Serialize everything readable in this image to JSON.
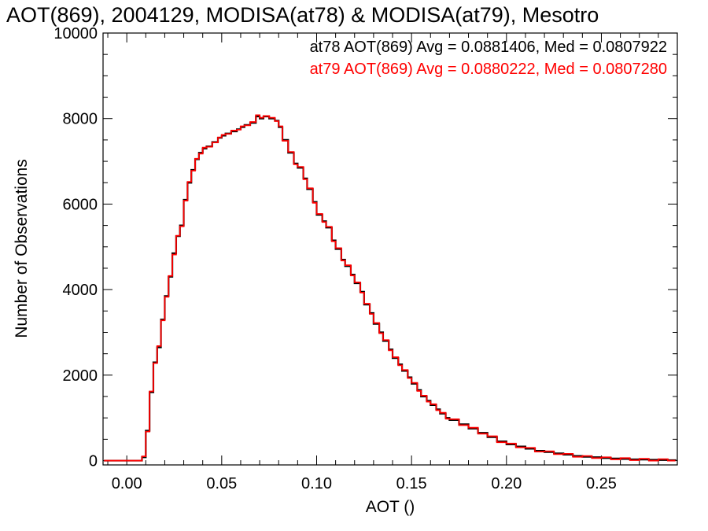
{
  "chart_data": {
    "type": "line",
    "style": "step-histogram",
    "title": "AOT(869), 2004129, MODISA(at78) & MODISA(at79), Mesotro",
    "xlabel": "AOT ()",
    "ylabel": "Number of Observations",
    "xlim": [
      -0.0125,
      0.29
    ],
    "ylim": [
      -100,
      10000
    ],
    "x_ticks": [
      0.0,
      0.05,
      0.1,
      0.15,
      0.2,
      0.25
    ],
    "x_tick_labels": [
      "0.00",
      "0.05",
      "0.10",
      "0.15",
      "0.20",
      "0.25"
    ],
    "y_ticks": [
      0,
      2000,
      4000,
      6000,
      8000,
      10000
    ],
    "y_tick_labels": [
      "0",
      "2000",
      "4000",
      "6000",
      "8000",
      "10000"
    ],
    "legend_position": "top-right",
    "annotations": [
      {
        "text": "at78 AOT(869) Avg = 0.0881406, Med = 0.0807922",
        "color": "#000000"
      },
      {
        "text": "at79 AOT(869) Avg = 0.0880222, Med = 0.0807280",
        "color": "#ff0000"
      }
    ],
    "series": [
      {
        "color": "#000000",
        "x": [
          -0.012,
          -0.005,
          0.0,
          0.004,
          0.006,
          0.008,
          0.01,
          0.012,
          0.014,
          0.016,
          0.018,
          0.02,
          0.022,
          0.024,
          0.026,
          0.028,
          0.03,
          0.032,
          0.034,
          0.036,
          0.038,
          0.04,
          0.042,
          0.045,
          0.048,
          0.05,
          0.052,
          0.055,
          0.058,
          0.06,
          0.062,
          0.065,
          0.068,
          0.07,
          0.072,
          0.075,
          0.078,
          0.08,
          0.082,
          0.085,
          0.088,
          0.09,
          0.093,
          0.095,
          0.098,
          0.1,
          0.103,
          0.105,
          0.108,
          0.11,
          0.113,
          0.115,
          0.118,
          0.12,
          0.123,
          0.125,
          0.128,
          0.13,
          0.133,
          0.135,
          0.138,
          0.14,
          0.143,
          0.145,
          0.148,
          0.15,
          0.153,
          0.155,
          0.158,
          0.16,
          0.163,
          0.165,
          0.168,
          0.17,
          0.175,
          0.18,
          0.185,
          0.19,
          0.195,
          0.2,
          0.205,
          0.21,
          0.215,
          0.22,
          0.225,
          0.23,
          0.235,
          0.24,
          0.245,
          0.25,
          0.255,
          0.26,
          0.265,
          0.27,
          0.275,
          0.28,
          0.285,
          0.289
        ],
        "y": [
          0,
          0,
          0,
          0,
          0,
          80,
          700,
          1600,
          2300,
          2650,
          3300,
          3850,
          4300,
          4850,
          5250,
          5500,
          6100,
          6500,
          6800,
          7050,
          7200,
          7300,
          7350,
          7450,
          7550,
          7600,
          7650,
          7700,
          7750,
          7800,
          7850,
          7900,
          8050,
          8000,
          8050,
          8000,
          7950,
          7800,
          7500,
          7200,
          6950,
          6850,
          6600,
          6350,
          6050,
          5750,
          5600,
          5450,
          5150,
          4950,
          4700,
          4550,
          4350,
          4150,
          3950,
          3650,
          3450,
          3200,
          3000,
          2800,
          2600,
          2400,
          2250,
          2100,
          1950,
          1800,
          1650,
          1500,
          1400,
          1300,
          1200,
          1100,
          1000,
          950,
          850,
          750,
          650,
          550,
          450,
          380,
          330,
          280,
          230,
          200,
          170,
          140,
          110,
          90,
          80,
          60,
          50,
          40,
          30,
          25,
          20,
          15,
          10,
          0
        ]
      },
      {
        "color": "#ff0000",
        "x": [
          -0.012,
          -0.005,
          0.0,
          0.004,
          0.006,
          0.008,
          0.01,
          0.012,
          0.014,
          0.016,
          0.018,
          0.02,
          0.022,
          0.024,
          0.026,
          0.028,
          0.03,
          0.032,
          0.034,
          0.036,
          0.038,
          0.04,
          0.042,
          0.045,
          0.048,
          0.05,
          0.052,
          0.055,
          0.058,
          0.06,
          0.062,
          0.065,
          0.068,
          0.07,
          0.072,
          0.075,
          0.078,
          0.08,
          0.082,
          0.085,
          0.088,
          0.09,
          0.093,
          0.095,
          0.098,
          0.1,
          0.103,
          0.105,
          0.108,
          0.11,
          0.113,
          0.115,
          0.118,
          0.12,
          0.123,
          0.125,
          0.128,
          0.13,
          0.133,
          0.135,
          0.138,
          0.14,
          0.143,
          0.145,
          0.148,
          0.15,
          0.153,
          0.155,
          0.158,
          0.16,
          0.163,
          0.165,
          0.168,
          0.17,
          0.175,
          0.18,
          0.185,
          0.19,
          0.195,
          0.2,
          0.205,
          0.21,
          0.215,
          0.22,
          0.225,
          0.23,
          0.235,
          0.24,
          0.245,
          0.25,
          0.255,
          0.26,
          0.265,
          0.27,
          0.275,
          0.28,
          0.285,
          0.289
        ],
        "y": [
          0,
          0,
          0,
          0,
          0,
          100,
          680,
          1620,
          2280,
          2680,
          3280,
          3830,
          4320,
          4820,
          5260,
          5480,
          6080,
          6520,
          6780,
          7060,
          7180,
          7320,
          7340,
          7440,
          7560,
          7620,
          7640,
          7720,
          7740,
          7820,
          7840,
          7920,
          8080,
          8020,
          8060,
          8020,
          7940,
          7820,
          7480,
          7220,
          6930,
          6870,
          6580,
          6370,
          6030,
          5770,
          5580,
          5470,
          5130,
          4970,
          4680,
          4570,
          4330,
          4170,
          3930,
          3670,
          3430,
          3220,
          2980,
          2820,
          2580,
          2420,
          2230,
          2120,
          1930,
          1820,
          1630,
          1520,
          1380,
          1320,
          1180,
          1120,
          980,
          970,
          830,
          770,
          630,
          570,
          430,
          400,
          310,
          300,
          210,
          220,
          150,
          160,
          90,
          110,
          60,
          80,
          30,
          60,
          10,
          45,
          0,
          35,
          0,
          0
        ]
      }
    ]
  }
}
